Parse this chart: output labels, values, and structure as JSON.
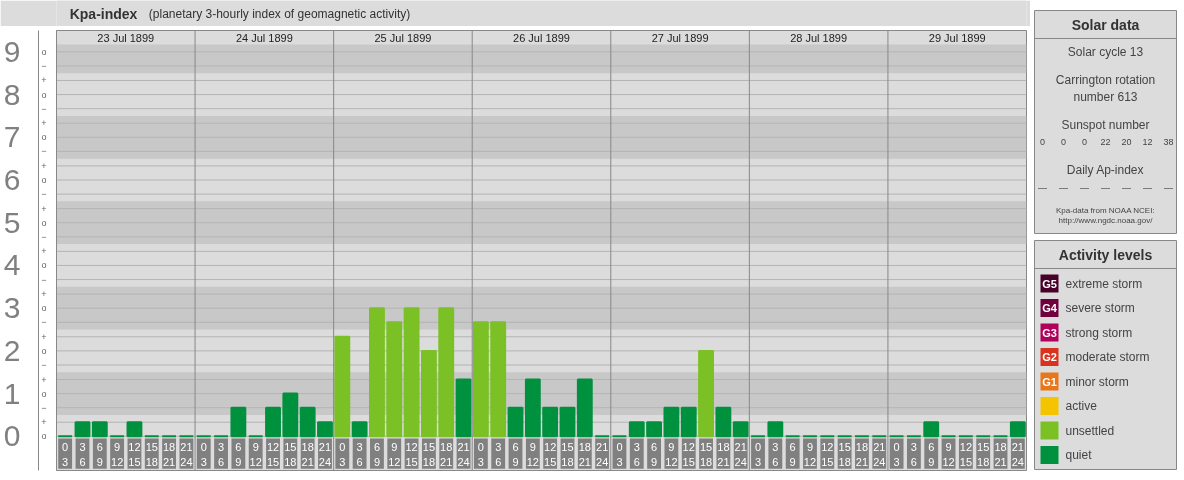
{
  "chart_data": {
    "type": "bar",
    "title": "Kpa-index",
    "subtitle": "(planetary 3-hourly index of geomagnetic activity)",
    "categories": [
      "0\n3",
      "3\n6",
      "6\n9",
      "9\n12",
      "12\n15",
      "15\n18",
      "18\n21",
      "21\n24",
      "0\n3",
      "3\n6",
      "6\n9",
      "9\n12",
      "12\n15",
      "15\n18",
      "18\n21",
      "21\n24",
      "0\n3",
      "3\n6",
      "6\n9",
      "9\n12",
      "12\n15",
      "15\n18",
      "18\n21",
      "21\n24",
      "0\n3",
      "3\n6",
      "6\n9",
      "9\n12",
      "12\n15",
      "15\n18",
      "18\n21",
      "21\n24",
      "0\n3",
      "3\n6",
      "6\n9",
      "9\n12",
      "12\n15",
      "15\n18",
      "18\n21",
      "21\n24",
      "0\n3",
      "3\n6",
      "6\n9",
      "9\n12",
      "12\n15",
      "15\n18",
      "18\n21",
      "21\n24",
      "0\n3",
      "3\n6",
      "6\n9",
      "9\n12",
      "12\n15",
      "15\n18",
      "18\n21",
      "21\n24"
    ],
    "series": [
      {
        "name": "extreme storm",
        "color": "#48002a",
        "values": [
          null,
          null,
          null,
          null,
          null,
          null,
          null,
          null,
          null,
          null,
          null,
          null,
          null,
          null,
          null,
          null,
          null,
          null,
          null,
          null,
          null,
          null,
          null,
          null,
          null,
          null,
          null,
          null,
          null,
          null,
          null,
          null,
          null,
          null,
          null,
          null,
          null,
          null,
          null,
          null,
          null,
          null,
          null,
          null,
          null,
          null,
          null,
          null,
          null,
          null,
          null,
          null,
          null,
          null,
          null,
          null
        ]
      },
      {
        "name": "severe storm",
        "color": "#70003e",
        "values": [
          null,
          null,
          null,
          null,
          null,
          null,
          null,
          null,
          null,
          null,
          null,
          null,
          null,
          null,
          null,
          null,
          null,
          null,
          null,
          null,
          null,
          null,
          null,
          null,
          null,
          null,
          null,
          null,
          null,
          null,
          null,
          null,
          null,
          null,
          null,
          null,
          null,
          null,
          null,
          null,
          null,
          null,
          null,
          null,
          null,
          null,
          null,
          null,
          null,
          null,
          null,
          null,
          null,
          null,
          null,
          null
        ]
      },
      {
        "name": "strong storm",
        "color": "#b0005b",
        "values": [
          null,
          null,
          null,
          null,
          null,
          null,
          null,
          null,
          null,
          null,
          null,
          null,
          null,
          null,
          null,
          null,
          null,
          null,
          null,
          null,
          null,
          null,
          null,
          null,
          null,
          null,
          null,
          null,
          null,
          null,
          null,
          null,
          null,
          null,
          null,
          null,
          null,
          null,
          null,
          null,
          null,
          null,
          null,
          null,
          null,
          null,
          null,
          null,
          null,
          null,
          null,
          null,
          null,
          null,
          null,
          null
        ]
      },
      {
        "name": "moderate storm",
        "color": "#d9321e",
        "values": [
          null,
          null,
          null,
          null,
          null,
          null,
          null,
          null,
          null,
          null,
          null,
          null,
          null,
          null,
          null,
          null,
          null,
          null,
          null,
          null,
          null,
          null,
          null,
          null,
          null,
          null,
          null,
          null,
          null,
          null,
          null,
          null,
          null,
          null,
          null,
          null,
          null,
          null,
          null,
          null,
          null,
          null,
          null,
          null,
          null,
          null,
          null,
          null,
          null,
          null,
          null,
          null,
          null,
          null,
          null,
          null
        ]
      },
      {
        "name": "minor storm",
        "color": "#e8761b",
        "values": [
          null,
          null,
          null,
          null,
          null,
          null,
          null,
          null,
          null,
          null,
          null,
          null,
          null,
          null,
          null,
          null,
          null,
          null,
          null,
          null,
          null,
          null,
          null,
          null,
          null,
          null,
          null,
          null,
          null,
          null,
          null,
          null,
          null,
          null,
          null,
          null,
          null,
          null,
          null,
          null,
          null,
          null,
          null,
          null,
          null,
          null,
          null,
          null,
          null,
          null,
          null,
          null,
          null,
          null,
          null,
          null
        ]
      },
      {
        "name": "active",
        "color": "#f5c400",
        "values": [
          null,
          null,
          null,
          null,
          null,
          null,
          null,
          null,
          null,
          null,
          null,
          null,
          null,
          null,
          null,
          null,
          null,
          null,
          null,
          null,
          null,
          null,
          null,
          null,
          null,
          null,
          null,
          null,
          null,
          null,
          null,
          null,
          null,
          null,
          null,
          null,
          null,
          null,
          null,
          null,
          null,
          null,
          null,
          null,
          null,
          null,
          null,
          null,
          null,
          null,
          null,
          null,
          null,
          null,
          null,
          null
        ]
      },
      {
        "name": "unsettled",
        "color": "#7bc125",
        "values": [
          null,
          null,
          null,
          null,
          null,
          null,
          null,
          null,
          null,
          null,
          null,
          null,
          null,
          null,
          null,
          null,
          2.33,
          null,
          3,
          2.67,
          3,
          2,
          3,
          null,
          2.67,
          2.67,
          null,
          null,
          null,
          null,
          null,
          null,
          null,
          null,
          null,
          null,
          null,
          2,
          null,
          null,
          null,
          null,
          null,
          null,
          null,
          null,
          null,
          null,
          null,
          null,
          null,
          null,
          null,
          null,
          null,
          null
        ]
      },
      {
        "name": "quiet",
        "color": "#00913f",
        "values": [
          0,
          0.33,
          0.33,
          0,
          0.33,
          0,
          0,
          0,
          0,
          0,
          0.67,
          0,
          0.67,
          1,
          0.67,
          0.33,
          null,
          0.33,
          null,
          null,
          null,
          null,
          null,
          1.33,
          null,
          null,
          0.67,
          1.33,
          0.67,
          0.67,
          1.33,
          0,
          0,
          0.33,
          0.33,
          0.67,
          0.67,
          null,
          0.67,
          0.33,
          0,
          0.33,
          0,
          0,
          0,
          0,
          0,
          0,
          0,
          0,
          0.33,
          0,
          0,
          0,
          0,
          0.33
        ]
      }
    ],
    "ylim": [
      -0.8,
      9.5
    ],
    "yticks": [
      {
        "value": 0,
        "label": "0"
      },
      {
        "value": 0.33,
        "label": null
      },
      {
        "value": 0.67,
        "label": null
      },
      {
        "value": 1,
        "label": "1"
      },
      {
        "value": 1.33,
        "label": null
      },
      {
        "value": 1.67,
        "label": null
      },
      {
        "value": 2,
        "label": "2"
      },
      {
        "value": 2.33,
        "label": null
      },
      {
        "value": 2.67,
        "label": null
      },
      {
        "value": 3,
        "label": "3"
      },
      {
        "value": 3.33,
        "label": null
      },
      {
        "value": 3.67,
        "label": null
      },
      {
        "value": 4,
        "label": "4"
      },
      {
        "value": 4.33,
        "label": null
      },
      {
        "value": 4.67,
        "label": null
      },
      {
        "value": 5,
        "label": "5"
      },
      {
        "value": 5.33,
        "label": null
      },
      {
        "value": 5.67,
        "label": null
      },
      {
        "value": 6,
        "label": "6"
      },
      {
        "value": 6.33,
        "label": null
      },
      {
        "value": 6.67,
        "label": null
      },
      {
        "value": 7,
        "label": "7"
      },
      {
        "value": 7.33,
        "label": null
      },
      {
        "value": 7.67,
        "label": null
      },
      {
        "value": 8,
        "label": "8"
      },
      {
        "value": 8.33,
        "label": null
      },
      {
        "value": 8.67,
        "label": null
      },
      {
        "value": 9,
        "label": "9"
      }
    ],
    "bands": [
      {
        "axis": "y",
        "from": 0.5,
        "to": 1.5,
        "color": "#c8c8c8"
      },
      {
        "axis": "y",
        "from": 2.5,
        "to": 3.5,
        "color": "#c8c8c8"
      },
      {
        "axis": "y",
        "from": 4.5,
        "to": 5.5,
        "color": "#c8c8c8"
      },
      {
        "axis": "y",
        "from": 6.5,
        "to": 7.5,
        "color": "#c8c8c8"
      },
      {
        "axis": "y",
        "from": 8.5,
        "to": 9.17,
        "color": "#c8c8c8"
      }
    ],
    "grid": "y",
    "legend": "right",
    "legend_title": "Activity levels",
    "annotations": [
      "23 Jul 1899",
      "24 Jul 1899",
      "25 Jul 1899",
      "26 Jul 1899",
      "27 Jul 1899",
      "28 Jul 1899",
      "29 Jul 1899",
      "Solar data",
      "Solar cycle 13",
      "Carrington rotation number 613",
      "Sunspot number",
      "0 0 0 22 20 12 38",
      "Daily Ap-index",
      "— — — — — — —",
      "Kpa-data from NOAA NCEI: http://www.ngdc.noaa.gov/",
      "G5",
      "G4",
      "G3",
      "G2",
      "G1",
      "o",
      "+",
      "−",
      "o",
      "+",
      "−",
      "o",
      "+",
      "−",
      "o",
      "+",
      "−",
      "o",
      "+",
      "−",
      "o",
      "+",
      "−",
      "o",
      "+",
      "−",
      "o",
      "+",
      "−",
      "o",
      "+",
      "−",
      "o"
    ]
  }
}
